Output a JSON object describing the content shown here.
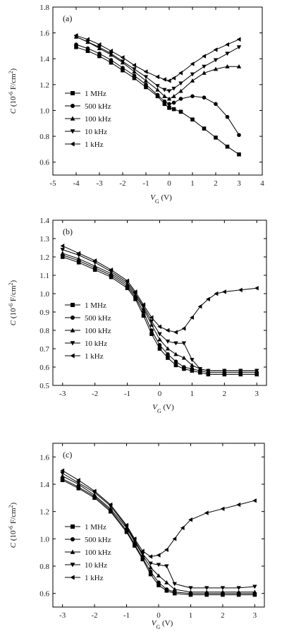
{
  "chart_data": [
    {
      "type": "line",
      "panel_label": "(a)",
      "xlabel": "V_G (V)",
      "ylabel": "C (10^-6 F/cm^2)",
      "xlim": [
        -5,
        4
      ],
      "ylim": [
        0.5,
        1.8
      ],
      "xticks": [
        -5,
        -4,
        -3,
        -2,
        -1,
        0,
        1,
        2,
        3,
        4
      ],
      "yticks": [
        0.6,
        0.8,
        1.0,
        1.2,
        1.4,
        1.6,
        1.8
      ],
      "ytick_labels": [
        "0.6",
        "0.8",
        "1.0",
        "1.2",
        "1.4",
        "1.6",
        "1.8"
      ],
      "legend_position": "lower-left",
      "series": [
        {
          "name": "1 MHz",
          "marker": "square",
          "x": [
            -4.0,
            -3.5,
            -3.0,
            -2.5,
            -2.0,
            -1.5,
            -1.0,
            -0.5,
            -0.2,
            0.0,
            0.2,
            0.5,
            1.0,
            1.5,
            2.0,
            2.5,
            3.0
          ],
          "y": [
            1.49,
            1.46,
            1.42,
            1.37,
            1.31,
            1.25,
            1.18,
            1.11,
            1.05,
            1.02,
            1.01,
            0.99,
            0.93,
            0.86,
            0.79,
            0.72,
            0.66
          ]
        },
        {
          "name": "500 kHz",
          "marker": "circle",
          "x": [
            -4.0,
            -3.5,
            -3.0,
            -2.5,
            -2.0,
            -1.5,
            -1.0,
            -0.5,
            -0.2,
            0.0,
            0.2,
            0.5,
            1.0,
            1.5,
            2.0,
            2.5,
            3.0
          ],
          "y": [
            1.51,
            1.48,
            1.44,
            1.39,
            1.33,
            1.27,
            1.2,
            1.12,
            1.07,
            1.05,
            1.06,
            1.09,
            1.11,
            1.1,
            1.05,
            0.95,
            0.81
          ]
        },
        {
          "name": "100 kHz",
          "marker": "triangle-up",
          "x": [
            -4.0,
            -3.5,
            -3.0,
            -2.5,
            -2.0,
            -1.5,
            -1.0,
            -0.5,
            -0.2,
            0.0,
            0.2,
            0.5,
            1.0,
            1.5,
            2.0,
            2.5,
            3.0
          ],
          "y": [
            1.57,
            1.53,
            1.48,
            1.43,
            1.37,
            1.3,
            1.23,
            1.16,
            1.11,
            1.09,
            1.11,
            1.15,
            1.23,
            1.29,
            1.32,
            1.34,
            1.34
          ]
        },
        {
          "name": "10 kHz",
          "marker": "triangle-down",
          "x": [
            -4.0,
            -3.5,
            -3.0,
            -2.5,
            -2.0,
            -1.5,
            -1.0,
            -0.5,
            -0.2,
            0.0,
            0.2,
            0.5,
            1.0,
            1.5,
            2.0,
            2.5,
            3.0
          ],
          "y": [
            1.57,
            1.53,
            1.49,
            1.44,
            1.38,
            1.32,
            1.26,
            1.19,
            1.16,
            1.15,
            1.17,
            1.21,
            1.28,
            1.34,
            1.39,
            1.44,
            1.49
          ]
        },
        {
          "name": "1 kHz",
          "marker": "triangle-left",
          "x": [
            -4.0,
            -3.5,
            -3.0,
            -2.5,
            -2.0,
            -1.5,
            -1.0,
            -0.5,
            -0.2,
            0.0,
            0.2,
            0.5,
            1.0,
            1.5,
            2.0,
            2.5,
            3.0
          ],
          "y": [
            1.58,
            1.55,
            1.51,
            1.46,
            1.41,
            1.35,
            1.3,
            1.26,
            1.24,
            1.23,
            1.25,
            1.29,
            1.36,
            1.42,
            1.47,
            1.51,
            1.55
          ]
        }
      ]
    },
    {
      "type": "line",
      "panel_label": "(b)",
      "xlabel": "V_G (V)",
      "ylabel": "C (10^-6 F/cm^2)",
      "xlim": [
        -3.3,
        3.3
      ],
      "ylim": [
        0.5,
        1.4
      ],
      "xticks": [
        -3,
        -2,
        -1,
        0,
        1,
        2,
        3
      ],
      "yticks": [
        0.5,
        0.6,
        0.7,
        0.8,
        0.9,
        1.0,
        1.1,
        1.2,
        1.3,
        1.4
      ],
      "ytick_labels": [
        "0.5",
        "0.6",
        "0.7",
        "0.8",
        "0.9",
        "1.0",
        "1.1",
        "1.2",
        "1.3",
        "1.4"
      ],
      "legend_position": "left",
      "series": [
        {
          "name": "1 MHz",
          "marker": "square",
          "x": [
            -3.0,
            -2.5,
            -2.0,
            -1.5,
            -1.0,
            -0.75,
            -0.5,
            -0.25,
            0.0,
            0.25,
            0.5,
            0.75,
            1.0,
            1.25,
            1.5,
            2.0,
            2.5,
            3.0
          ],
          "y": [
            1.2,
            1.17,
            1.13,
            1.09,
            1.03,
            0.97,
            0.88,
            0.78,
            0.7,
            0.65,
            0.61,
            0.59,
            0.58,
            0.57,
            0.56,
            0.56,
            0.56,
            0.56
          ]
        },
        {
          "name": "500 kHz",
          "marker": "circle",
          "x": [
            -3.0,
            -2.5,
            -2.0,
            -1.5,
            -1.0,
            -0.75,
            -0.5,
            -0.25,
            0.0,
            0.25,
            0.5,
            0.75,
            1.0,
            1.25,
            1.5,
            2.0,
            2.5,
            3.0
          ],
          "y": [
            1.21,
            1.18,
            1.14,
            1.1,
            1.04,
            0.98,
            0.9,
            0.8,
            0.72,
            0.67,
            0.63,
            0.6,
            0.59,
            0.58,
            0.57,
            0.57,
            0.57,
            0.57
          ]
        },
        {
          "name": "100 kHz",
          "marker": "triangle-up",
          "x": [
            -3.0,
            -2.5,
            -2.0,
            -1.5,
            -1.0,
            -0.75,
            -0.5,
            -0.25,
            0.0,
            0.25,
            0.5,
            0.75,
            1.0,
            1.25,
            1.5,
            2.0,
            2.5,
            3.0
          ],
          "y": [
            1.22,
            1.19,
            1.15,
            1.11,
            1.05,
            0.99,
            0.92,
            0.83,
            0.75,
            0.7,
            0.67,
            0.65,
            0.61,
            0.59,
            0.58,
            0.58,
            0.58,
            0.58
          ]
        },
        {
          "name": "10 kHz",
          "marker": "triangle-down",
          "x": [
            -3.0,
            -2.5,
            -2.0,
            -1.5,
            -1.0,
            -0.75,
            -0.5,
            -0.25,
            0.0,
            0.25,
            0.5,
            0.75,
            1.0,
            1.25,
            1.5,
            2.0,
            2.5,
            3.0
          ],
          "y": [
            1.24,
            1.21,
            1.17,
            1.12,
            1.06,
            1.0,
            0.93,
            0.85,
            0.78,
            0.74,
            0.73,
            0.73,
            0.64,
            0.59,
            0.58,
            0.58,
            0.58,
            0.58
          ]
        },
        {
          "name": "1 kHz",
          "marker": "triangle-left",
          "x": [
            -3.0,
            -2.5,
            -2.0,
            -1.5,
            -1.0,
            -0.75,
            -0.5,
            -0.25,
            0.0,
            0.25,
            0.5,
            0.75,
            1.0,
            1.25,
            1.5,
            1.75,
            2.0,
            2.5,
            3.0
          ],
          "y": [
            1.26,
            1.22,
            1.18,
            1.13,
            1.07,
            1.01,
            0.94,
            0.87,
            0.82,
            0.8,
            0.79,
            0.81,
            0.87,
            0.93,
            0.97,
            1.0,
            1.01,
            1.02,
            1.03
          ]
        }
      ]
    },
    {
      "type": "line",
      "panel_label": "(c)",
      "xlabel": "V_G (V)",
      "ylabel": "C (10^-6 F/cm^2)",
      "xlim": [
        -3.3,
        3.3
      ],
      "ylim": [
        0.5,
        1.7
      ],
      "xticks": [
        -3,
        -2,
        -1,
        0,
        1,
        2,
        3
      ],
      "yticks": [
        0.6,
        0.8,
        1.0,
        1.2,
        1.4,
        1.6
      ],
      "ytick_labels": [
        "0.6",
        "0.8",
        "1.0",
        "1.2",
        "1.4",
        "1.6"
      ],
      "legend_position": "left",
      "series": [
        {
          "name": "1 MHz",
          "marker": "square",
          "x": [
            -3.0,
            -2.5,
            -2.0,
            -1.5,
            -1.0,
            -0.75,
            -0.5,
            -0.25,
            0.0,
            0.25,
            0.5,
            1.0,
            1.5,
            2.0,
            2.5,
            3.0
          ],
          "y": [
            1.43,
            1.37,
            1.3,
            1.2,
            1.05,
            0.95,
            0.85,
            0.74,
            0.66,
            0.62,
            0.6,
            0.59,
            0.59,
            0.59,
            0.59,
            0.59
          ]
        },
        {
          "name": "500 kHz",
          "marker": "circle",
          "x": [
            -3.0,
            -2.5,
            -2.0,
            -1.5,
            -1.0,
            -0.75,
            -0.5,
            -0.25,
            0.0,
            0.25,
            0.5,
            1.0,
            1.5,
            2.0,
            2.5,
            3.0
          ],
          "y": [
            1.44,
            1.38,
            1.31,
            1.21,
            1.06,
            0.96,
            0.86,
            0.76,
            0.68,
            0.63,
            0.61,
            0.6,
            0.6,
            0.6,
            0.6,
            0.6
          ]
        },
        {
          "name": "100 kHz",
          "marker": "triangle-up",
          "x": [
            -3.0,
            -2.5,
            -2.0,
            -1.5,
            -1.0,
            -0.75,
            -0.5,
            -0.25,
            0.0,
            0.25,
            0.5,
            1.0,
            1.5,
            2.0,
            2.5,
            3.0
          ],
          "y": [
            1.46,
            1.4,
            1.32,
            1.22,
            1.08,
            0.98,
            0.88,
            0.79,
            0.73,
            0.68,
            0.63,
            0.61,
            0.61,
            0.61,
            0.61,
            0.61
          ]
        },
        {
          "name": "10 kHz",
          "marker": "triangle-down",
          "x": [
            -3.0,
            -2.5,
            -2.0,
            -1.5,
            -1.0,
            -0.75,
            -0.5,
            -0.25,
            0.0,
            0.25,
            0.5,
            1.0,
            1.5,
            2.0,
            2.5,
            3.0
          ],
          "y": [
            1.48,
            1.41,
            1.34,
            1.24,
            1.09,
            0.99,
            0.89,
            0.82,
            0.81,
            0.8,
            0.67,
            0.64,
            0.64,
            0.64,
            0.64,
            0.65
          ]
        },
        {
          "name": "1 kHz",
          "marker": "triangle-left",
          "x": [
            -3.0,
            -2.5,
            -2.0,
            -1.5,
            -1.0,
            -0.75,
            -0.5,
            -0.25,
            0.0,
            0.25,
            0.5,
            0.75,
            1.0,
            1.5,
            2.0,
            2.5,
            3.0
          ],
          "y": [
            1.5,
            1.43,
            1.35,
            1.25,
            1.1,
            1.0,
            0.91,
            0.87,
            0.88,
            0.92,
            1.0,
            1.08,
            1.14,
            1.19,
            1.22,
            1.25,
            1.28
          ]
        }
      ]
    }
  ]
}
